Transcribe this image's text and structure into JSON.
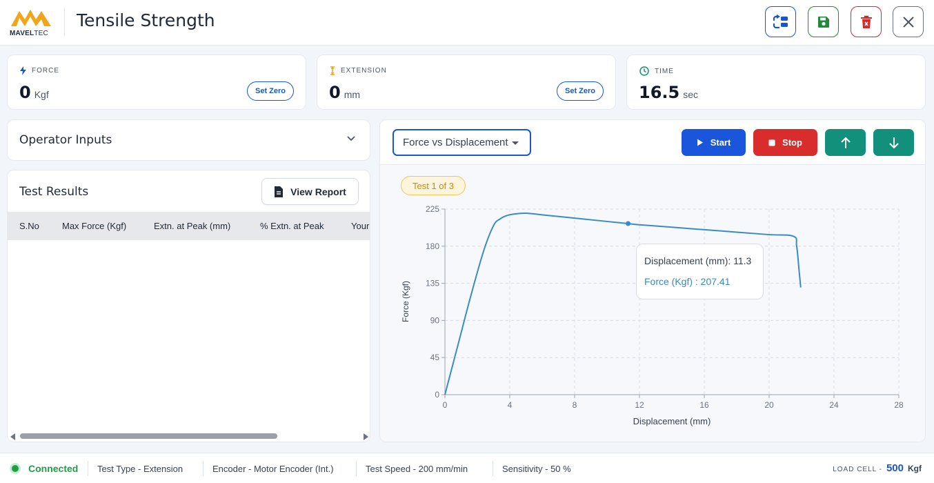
{
  "header": {
    "logo_text_a": "MAVEL",
    "logo_text_b": "TEC",
    "title": "Tensile Strength",
    "icons": [
      "swap-icon",
      "save-icon",
      "delete-icon",
      "close-icon"
    ]
  },
  "metrics": [
    {
      "label": "FORCE",
      "value": "0",
      "unit": "Kgf",
      "action": "Set Zero",
      "icon": "bolt-icon"
    },
    {
      "label": "EXTENSION",
      "value": "0",
      "unit": "mm",
      "action": "Set Zero",
      "icon": "extension-icon"
    },
    {
      "label": "TIME",
      "value": "16.5",
      "unit": "sec",
      "icon": "clock-icon"
    }
  ],
  "operator": {
    "title": "Operator Inputs"
  },
  "results": {
    "title": "Test Results",
    "view_report": "View Report",
    "columns": [
      "S.No",
      "Max Force (Kgf)",
      "Extn. at Peak (mm)",
      "% Extn. at Peak",
      "Your"
    ]
  },
  "chart_panel": {
    "select_value": "Force vs Displacement",
    "start": "Start",
    "stop": "Stop",
    "badge": "Test 1 of 3",
    "tooltip_line1": "Displacement (mm): 11.3",
    "tooltip_line2": "Force (Kgf) : 207.41"
  },
  "chart_data": {
    "type": "line",
    "title": "",
    "xlabel": "Displacement (mm)",
    "ylabel": "Force (Kgf)",
    "xlim": [
      0,
      28
    ],
    "ylim": [
      0,
      225
    ],
    "xticks": [
      0,
      4,
      8,
      12,
      16,
      20,
      24,
      28
    ],
    "yticks": [
      0,
      45,
      90,
      135,
      180,
      225
    ],
    "grid": true,
    "color": "#3a8bc5",
    "highlight": {
      "x": 11.3,
      "y": 207.41
    },
    "x": [
      0,
      0.8,
      1.6,
      2.4,
      3.0,
      3.4,
      3.8,
      4.3,
      5.0,
      6.0,
      8.0,
      10.0,
      11.3,
      12.0,
      14.0,
      16.0,
      18.0,
      20.0,
      21.5,
      21.7,
      21.85,
      21.95
    ],
    "y": [
      0,
      60,
      120,
      175,
      205,
      213,
      217,
      219,
      220,
      218,
      214,
      210,
      207.4,
      206,
      203,
      200,
      197,
      194,
      192,
      180,
      150,
      130
    ]
  },
  "status": {
    "connected": "Connected",
    "test_type": "Test Type -  Extension",
    "encoder": "Encoder -  Motor Encoder (Int.)",
    "speed": "Test Speed -  200 mm/min",
    "sensitivity": "Sensitivity -  50 %",
    "loadcell_label": "LOAD CELL -",
    "loadcell_value": "500",
    "loadcell_unit": "Kgf"
  }
}
